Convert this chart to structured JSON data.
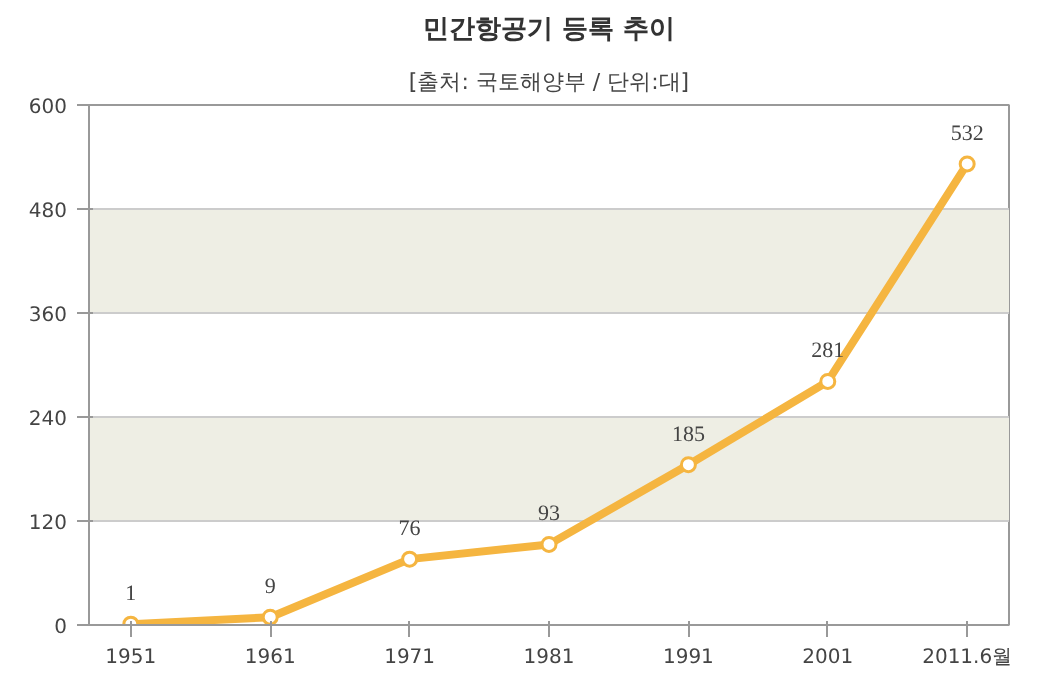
{
  "chart_data": {
    "type": "line",
    "title": "민간항공기 등록 추이",
    "subtitle": "[출처: 국토해양부 / 단위:대]",
    "categories": [
      "1951",
      "1961",
      "1971",
      "1981",
      "1991",
      "2001",
      "2011.6월"
    ],
    "series": [
      {
        "color": "#f5b540",
        "values": [
          1,
          9,
          76,
          93,
          185,
          281,
          532
        ]
      }
    ],
    "ylim": [
      0,
      600
    ],
    "yticks": [
      0,
      120,
      240,
      360,
      480,
      600
    ],
    "grid": "y",
    "marker": "circle",
    "data_labels": true
  }
}
